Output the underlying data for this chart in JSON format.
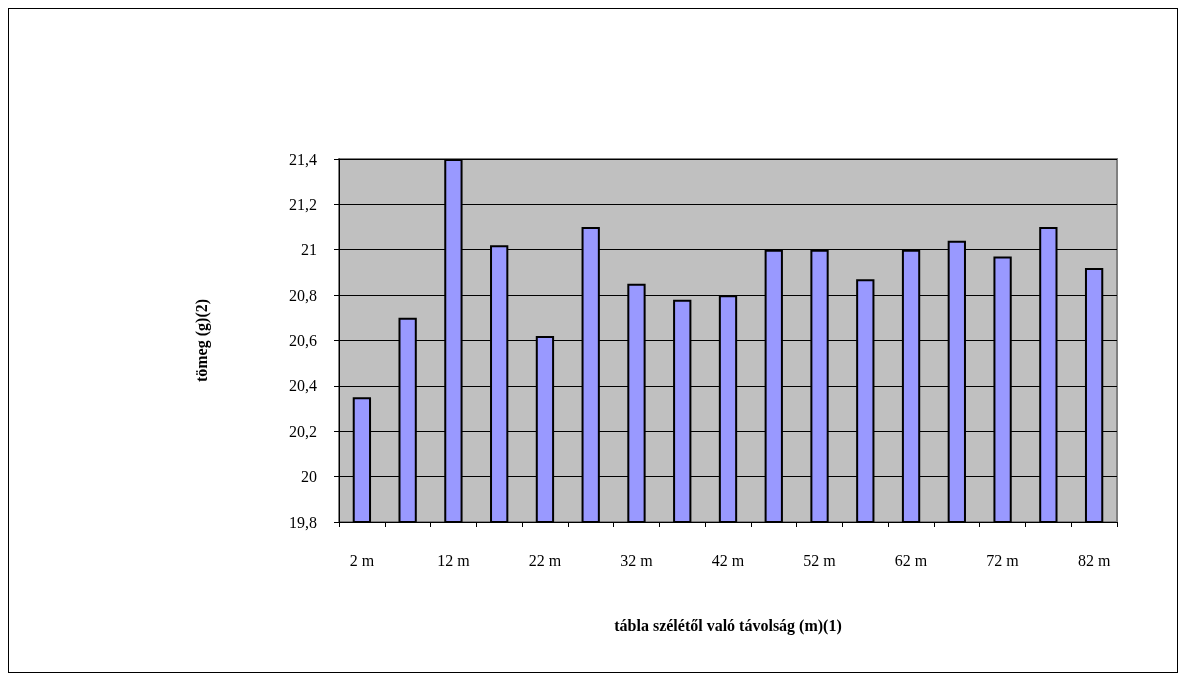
{
  "chart_data": {
    "type": "bar",
    "xlabel": "tábla szélétől való távolság (m)(1)",
    "ylabel": "tömeg (g)(2)",
    "categories": [
      "2 m",
      null,
      "12 m",
      null,
      "22 m",
      null,
      "32 m",
      null,
      "42 m",
      null,
      "52 m",
      null,
      "62 m",
      null,
      "72 m",
      null,
      "82 m"
    ],
    "values": [
      20.35,
      20.7,
      21.4,
      21.02,
      20.62,
      21.1,
      20.85,
      20.78,
      20.8,
      21.0,
      21.0,
      20.87,
      21.0,
      21.04,
      20.97,
      21.1,
      20.92
    ],
    "color": "#9999ff",
    "ylim": [
      19.8,
      21.4
    ],
    "yticks": [
      {
        "value": 19.8,
        "label": "19,8"
      },
      {
        "value": 20,
        "label": "20"
      },
      {
        "value": 20.2,
        "label": "20,2"
      },
      {
        "value": 20.4,
        "label": "20,4"
      },
      {
        "value": 20.6,
        "label": "20,6"
      },
      {
        "value": 20.8,
        "label": "20,8"
      },
      {
        "value": 21,
        "label": "21"
      },
      {
        "value": 21.2,
        "label": "21,2"
      },
      {
        "value": 21.4,
        "label": "21,4"
      }
    ],
    "grid": "y"
  }
}
